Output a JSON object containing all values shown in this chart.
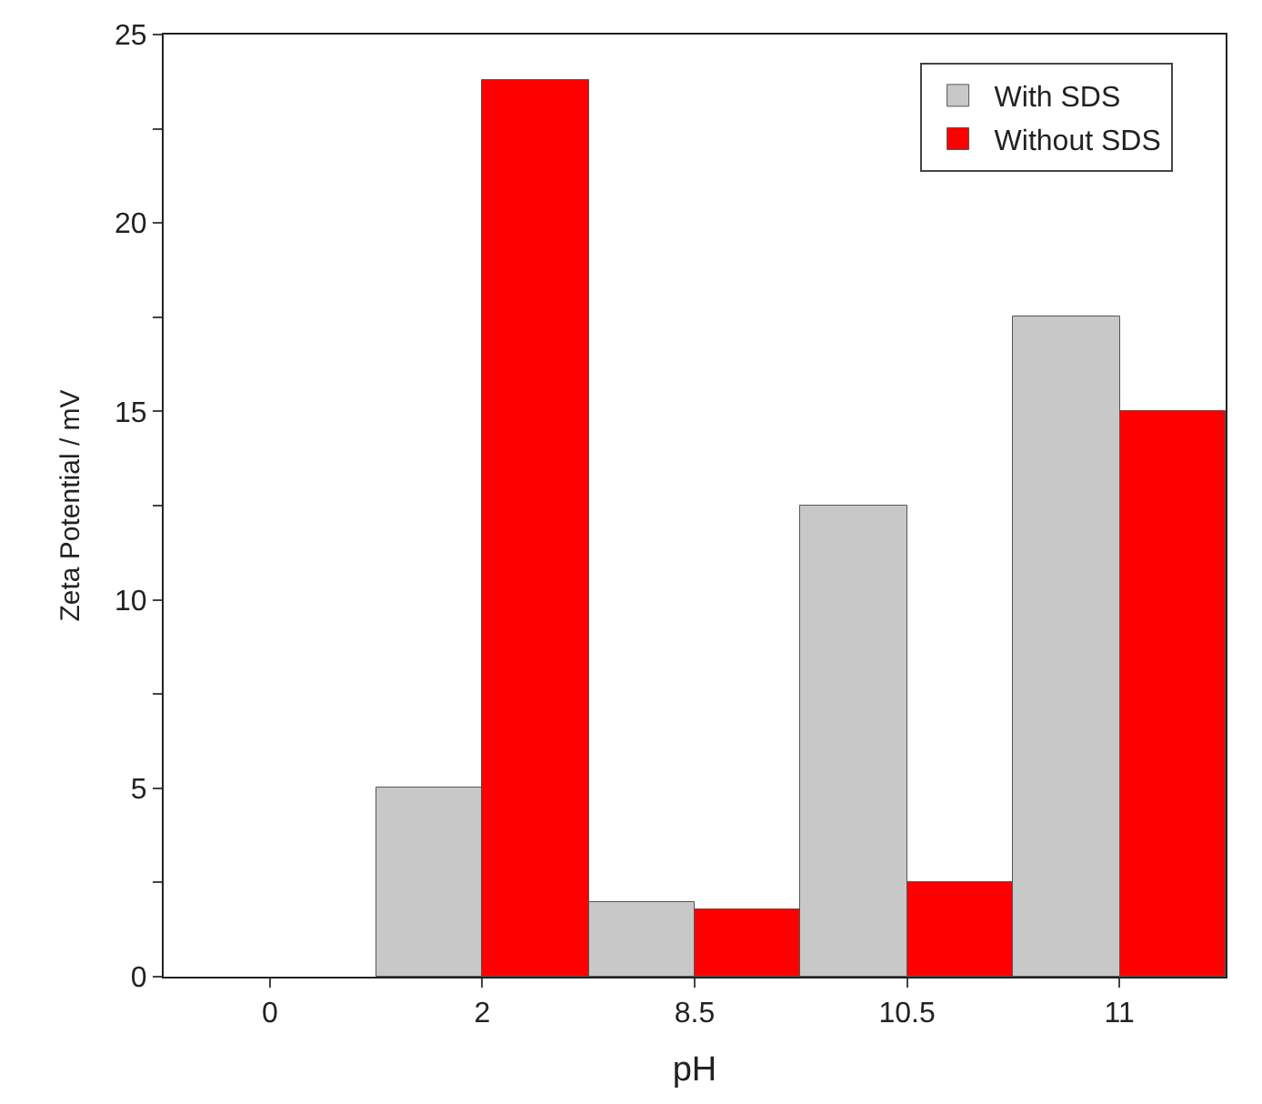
{
  "chart_data": {
    "type": "bar",
    "xlabel": "pH",
    "ylabel": "Zeta Potential / mV",
    "categories": [
      "0",
      "2",
      "8.5",
      "10.5",
      "11"
    ],
    "series": [
      {
        "name": "With SDS",
        "color": "#c8c8c8",
        "values": [
          null,
          5,
          2,
          12.5,
          17.5
        ]
      },
      {
        "name": "Without SDS",
        "color": "#ff0000",
        "values": [
          null,
          23.8,
          1.8,
          2.5,
          15
        ]
      }
    ],
    "ylim": [
      0,
      25
    ],
    "yticks": [
      0,
      {
        "value": 2.5,
        "label": null
      },
      5,
      {
        "value": 7.5,
        "label": null
      },
      10,
      {
        "value": 12.5,
        "label": null
      },
      15,
      {
        "value": 17.5,
        "label": null
      },
      20,
      {
        "value": 22.5,
        "label": null
      },
      25
    ],
    "legend": "top right"
  }
}
